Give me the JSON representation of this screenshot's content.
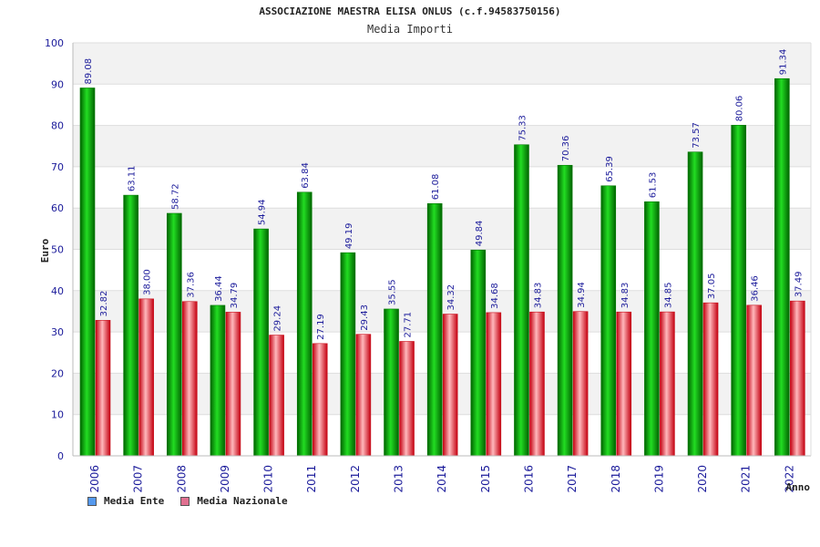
{
  "chart_data": {
    "type": "bar",
    "title": "ASSOCIAZIONE MAESTRA ELISA ONLUS (c.f.94583750156)",
    "subtitle": "Media Importi",
    "xlabel": "Anno",
    "ylabel": "Euro",
    "ylim": [
      0,
      100
    ],
    "yticks": [
      "0",
      "10",
      "20",
      "30",
      "40",
      "50",
      "60",
      "70",
      "80",
      "90",
      "100"
    ],
    "grid": true,
    "legend_position": "bottom-left",
    "categories": [
      "2006",
      "2007",
      "2008",
      "2009",
      "2010",
      "2011",
      "2012",
      "2013",
      "2014",
      "2015",
      "2016",
      "2017",
      "2018",
      "2019",
      "2020",
      "2021",
      "2022"
    ],
    "series": [
      {
        "name": "Media Ente",
        "color": "#00b000",
        "legend_color": "#5599ee",
        "values": [
          89.08,
          63.11,
          58.72,
          36.44,
          54.94,
          63.84,
          49.19,
          35.55,
          61.08,
          49.84,
          75.33,
          70.36,
          65.39,
          61.53,
          73.57,
          80.06,
          91.34
        ],
        "labels": [
          "89.08",
          "63.11",
          "58.72",
          "36.44",
          "54.94",
          "63.84",
          "49.19",
          "35.55",
          "61.08",
          "49.84",
          "75.33",
          "70.36",
          "65.39",
          "61.53",
          "73.57",
          "80.06",
          "91.34"
        ]
      },
      {
        "name": "Media Nazionale",
        "color": "#e0303a",
        "legend_color": "#e07090",
        "values": [
          32.82,
          38.0,
          37.36,
          34.79,
          29.24,
          27.19,
          29.43,
          27.71,
          34.32,
          34.68,
          34.83,
          34.94,
          34.83,
          34.85,
          37.05,
          36.46,
          37.49
        ],
        "labels": [
          "32.82",
          "38.00",
          "37.36",
          "34.79",
          "29.24",
          "27.19",
          "29.43",
          "27.71",
          "34.32",
          "34.68",
          "34.83",
          "34.94",
          "34.83",
          "34.85",
          "37.05",
          "36.46",
          "37.49"
        ]
      }
    ]
  }
}
